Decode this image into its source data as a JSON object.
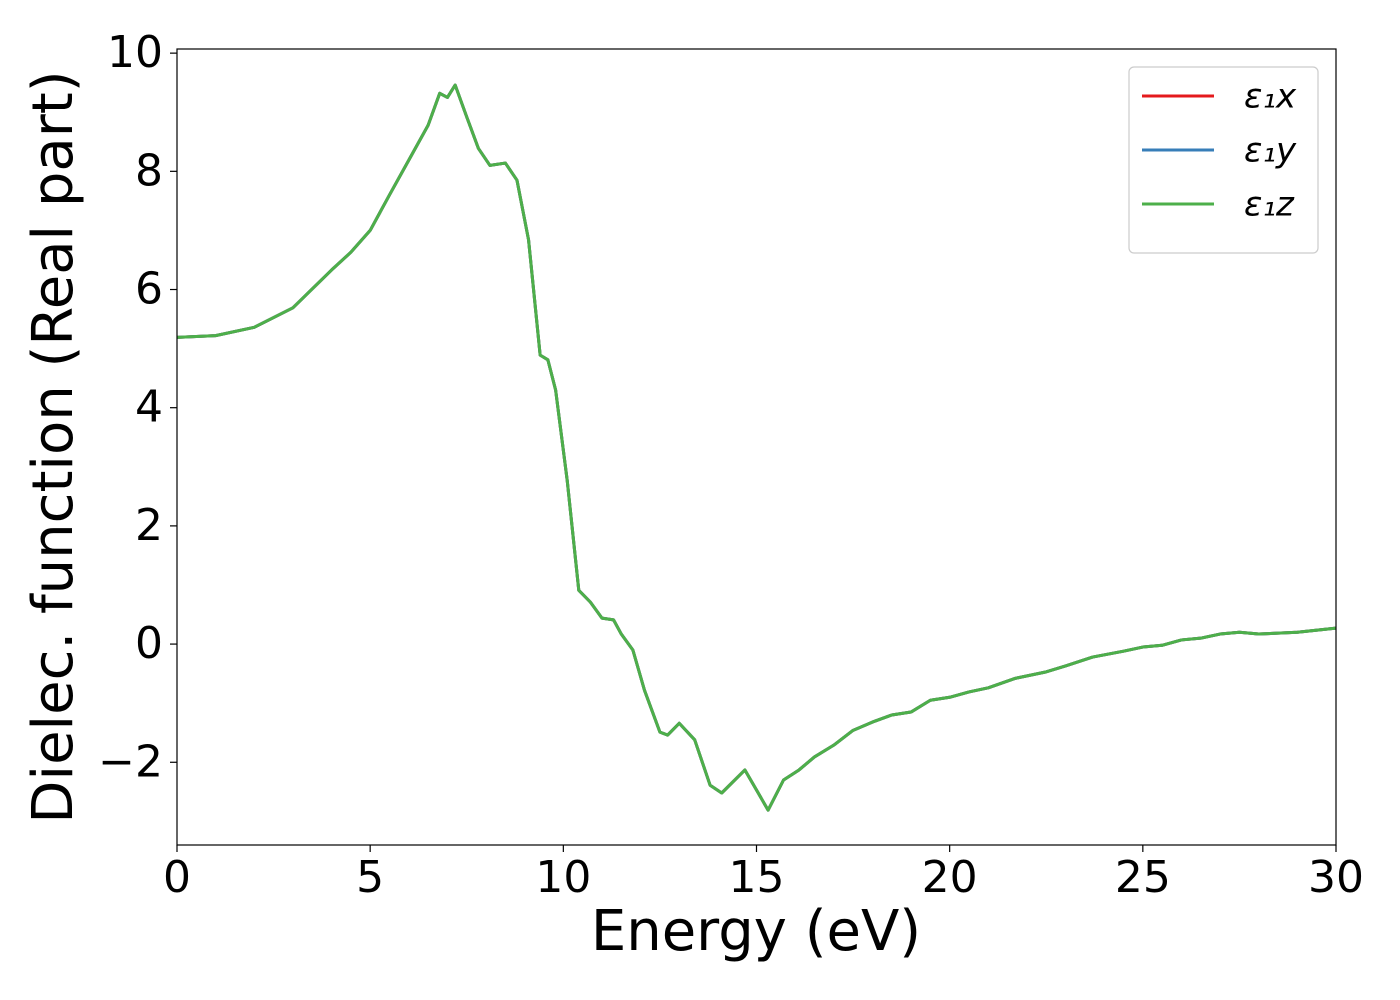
{
  "chart_data": {
    "type": "line",
    "xlabel": "Energy (eV)",
    "ylabel": "Dielec. function (Real part)",
    "x": [
      0,
      1,
      2,
      3,
      4,
      4.5,
      5,
      5.5,
      6,
      6.5,
      6.8,
      7.0,
      7.2,
      7.5,
      7.8,
      8.1,
      8.5,
      8.8,
      9.1,
      9.4,
      9.6,
      9.8,
      10.1,
      10.4,
      10.7,
      11.0,
      11.3,
      11.5,
      11.8,
      12.1,
      12.5,
      12.7,
      13.0,
      13.4,
      13.8,
      14.1,
      14.7,
      15.0,
      15.3,
      15.7,
      16.1,
      16.5,
      17.0,
      17.5,
      18.0,
      18.5,
      19.0,
      19.5,
      20.0,
      20.5,
      21.0,
      21.7,
      22.5,
      23.0,
      23.7,
      24.5,
      25.0,
      25.5,
      26.0,
      26.5,
      27.0,
      27.5,
      28,
      29,
      30
    ],
    "series": [
      {
        "name": "ε₁x",
        "color": "#e41a1c",
        "values": [
          5.19,
          5.22,
          5.36,
          5.69,
          6.33,
          6.63,
          7.0,
          7.6,
          8.19,
          8.78,
          9.32,
          9.25,
          9.46,
          8.92,
          8.39,
          8.1,
          8.14,
          7.85,
          6.84,
          4.89,
          4.81,
          4.3,
          2.77,
          0.91,
          0.71,
          0.44,
          0.41,
          0.17,
          -0.1,
          -0.78,
          -1.49,
          -1.54,
          -1.34,
          -1.62,
          -2.39,
          -2.52,
          -2.13,
          -2.47,
          -2.81,
          -2.3,
          -2.13,
          -1.91,
          -1.71,
          -1.46,
          -1.32,
          -1.2,
          -1.15,
          -0.95,
          -0.9,
          -0.81,
          -0.74,
          -0.58,
          -0.47,
          -0.37,
          -0.22,
          -0.12,
          -0.05,
          -0.02,
          0.07,
          0.1,
          0.17,
          0.2,
          0.17,
          0.2,
          0.27
        ]
      },
      {
        "name": "ε₁y",
        "color": "#377eb8",
        "values": [
          5.19,
          5.22,
          5.36,
          5.69,
          6.33,
          6.63,
          7.0,
          7.6,
          8.19,
          8.78,
          9.32,
          9.25,
          9.46,
          8.92,
          8.39,
          8.1,
          8.14,
          7.85,
          6.84,
          4.89,
          4.81,
          4.3,
          2.77,
          0.91,
          0.71,
          0.44,
          0.41,
          0.17,
          -0.1,
          -0.78,
          -1.49,
          -1.54,
          -1.34,
          -1.62,
          -2.39,
          -2.52,
          -2.13,
          -2.47,
          -2.81,
          -2.3,
          -2.13,
          -1.91,
          -1.71,
          -1.46,
          -1.32,
          -1.2,
          -1.15,
          -0.95,
          -0.9,
          -0.81,
          -0.74,
          -0.58,
          -0.47,
          -0.37,
          -0.22,
          -0.12,
          -0.05,
          -0.02,
          0.07,
          0.1,
          0.17,
          0.2,
          0.17,
          0.2,
          0.27
        ]
      },
      {
        "name": "ε₁z",
        "color": "#4daf4a",
        "values": [
          5.19,
          5.22,
          5.36,
          5.69,
          6.33,
          6.63,
          7.0,
          7.6,
          8.19,
          8.78,
          9.32,
          9.25,
          9.46,
          8.92,
          8.39,
          8.1,
          8.14,
          7.85,
          6.84,
          4.89,
          4.81,
          4.3,
          2.77,
          0.91,
          0.71,
          0.44,
          0.41,
          0.17,
          -0.1,
          -0.78,
          -1.49,
          -1.54,
          -1.34,
          -1.62,
          -2.39,
          -2.52,
          -2.13,
          -2.47,
          -2.81,
          -2.3,
          -2.13,
          -1.91,
          -1.71,
          -1.46,
          -1.32,
          -1.2,
          -1.15,
          -0.95,
          -0.9,
          -0.81,
          -0.74,
          -0.58,
          -0.47,
          -0.37,
          -0.22,
          -0.12,
          -0.05,
          -0.02,
          0.07,
          0.1,
          0.17,
          0.2,
          0.17,
          0.2,
          0.27
        ]
      }
    ],
    "xlim": [
      0,
      30
    ],
    "xticks": [
      0,
      5,
      10,
      15,
      20,
      25,
      30
    ],
    "ylim": [
      -3.4,
      10.07
    ],
    "yticks": [
      -2,
      0,
      2,
      4,
      6,
      8,
      10
    ],
    "legend": "upper right",
    "grid": false
  }
}
